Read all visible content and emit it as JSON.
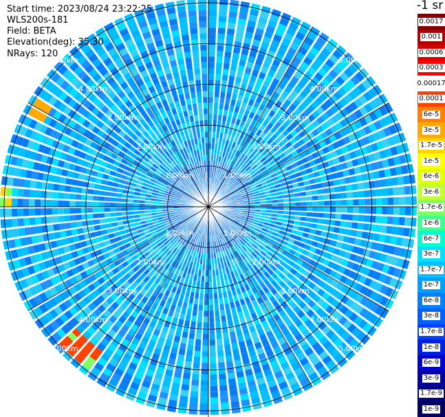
{
  "meta": {
    "start_time": "Start time: 2023/08/24 23:22:25",
    "instrument": "WLS200s-181",
    "field": "Field: BETA",
    "elevation": "Elevation(deg): 35.30",
    "nrays": "NRays: 120"
  },
  "colorbar": {
    "title": "-1 sr",
    "entries": [
      {
        "label": "0.0017",
        "color": "#800000"
      },
      {
        "label": "0.001",
        "color": "#b00000"
      },
      {
        "label": "0.0006",
        "color": "#d80000"
      },
      {
        "label": "0.0003",
        "color": "#ff0000"
      },
      {
        "label": "0.00017",
        "color": "#ffffff"
      },
      {
        "label": "0.0001",
        "color": "#ff4000"
      },
      {
        "label": "6e-5",
        "color": "#ff8000"
      },
      {
        "label": "3e-5",
        "color": "#ffaa00"
      },
      {
        "label": "1.7e-5",
        "color": "#ffd400"
      },
      {
        "label": "1e-5",
        "color": "#ffff00"
      },
      {
        "label": "6e-6",
        "color": "#e4ff00"
      },
      {
        "label": "3e-6",
        "color": "#c0ff30"
      },
      {
        "label": "1.7e-6",
        "color": "#80ff60"
      },
      {
        "label": "1e-6",
        "color": "#40ff90"
      },
      {
        "label": "6e-7",
        "color": "#00ffd0"
      },
      {
        "label": "3e-7",
        "color": "#00e0ff"
      },
      {
        "label": "1.7e-7",
        "color": "#00c0ff"
      },
      {
        "label": "1e-7",
        "color": "#00a0ff"
      },
      {
        "label": "6e-8",
        "color": "#0080ff"
      },
      {
        "label": "3e-8",
        "color": "#0060ff"
      },
      {
        "label": "1.7e-8",
        "color": "#0040ff"
      },
      {
        "label": "1e-8",
        "color": "#0020e0"
      },
      {
        "label": "6e-9",
        "color": "#0000d0"
      },
      {
        "label": "3e-9",
        "color": "#0000a0"
      },
      {
        "label": "1.7e-9",
        "color": "#000080"
      },
      {
        "label": "1e-9",
        "color": "#000060"
      }
    ]
  },
  "chart_data": {
    "type": "heatmap",
    "projection": "polar",
    "field": "BETA",
    "nrays": 120,
    "elevation_deg": 35.3,
    "range_rings_km": [
      1,
      2,
      3,
      4,
      5
    ],
    "ring_label_texts": [
      "1.00km",
      "2.00km",
      "3.00km",
      "4.00km",
      "5.00km"
    ],
    "max_range_km": 5.1,
    "spokes_deg": [
      0,
      30,
      60,
      90,
      120,
      150,
      180,
      210,
      240,
      270,
      300,
      330
    ],
    "typical_value": "3e-7 to 1e-7",
    "near_field_value": "6e-8 to 3e-8",
    "hotspots": [
      {
        "azimuth_deg_range": [
          296,
          302
        ],
        "range_km": [
          4.6,
          5.0
        ],
        "value": "3e-5"
      },
      {
        "azimuth_deg_range": [
          268,
          273
        ],
        "range_km": [
          4.9,
          5.1
        ],
        "value": "1.7e-5"
      },
      {
        "azimuth_deg_range": [
          215,
          225
        ],
        "range_km": [
          4.4,
          5.0
        ],
        "value": "1e-4"
      }
    ]
  }
}
